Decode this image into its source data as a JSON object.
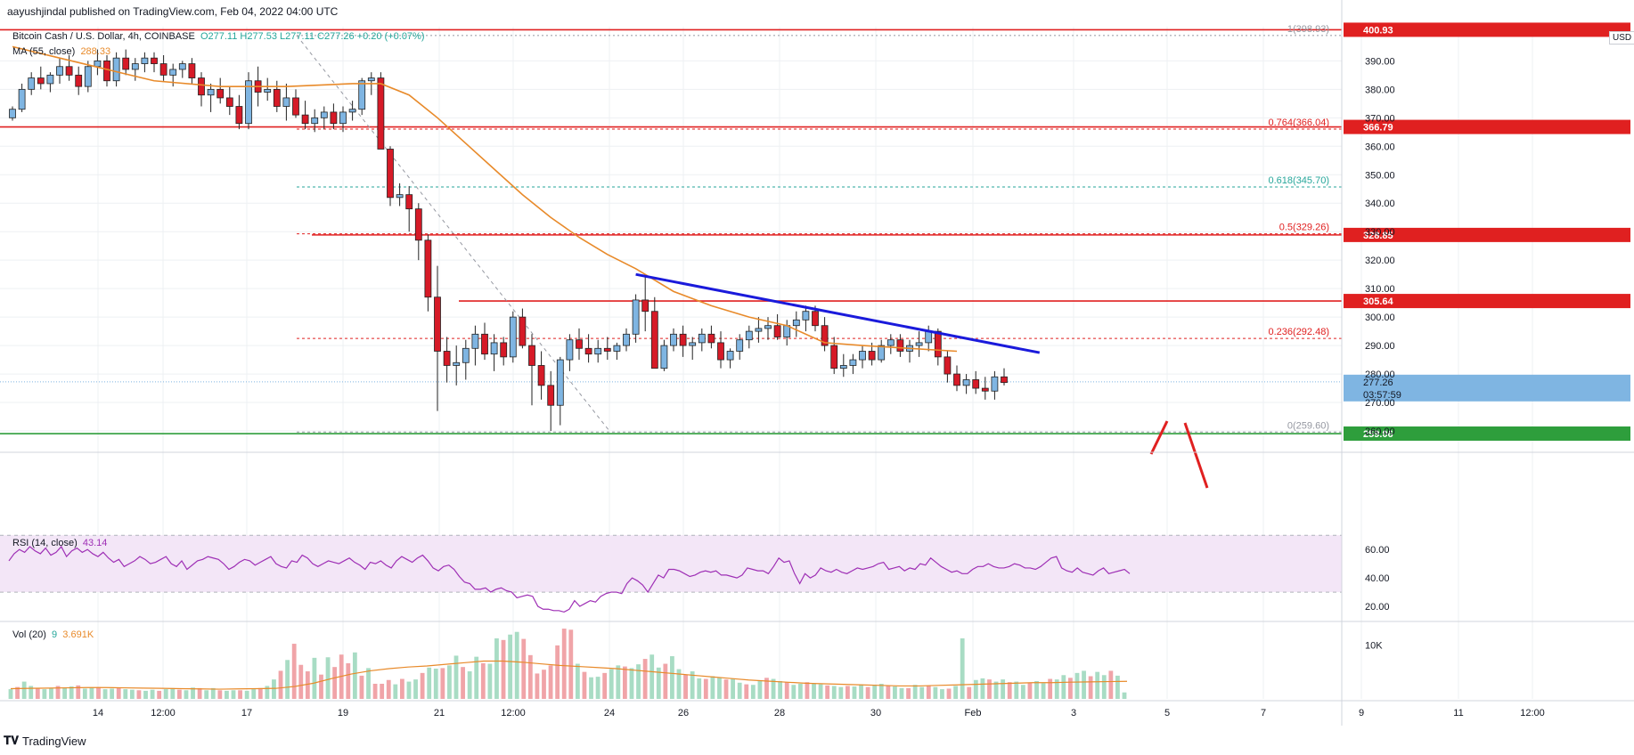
{
  "header": {
    "published": "aayushjindal published on TradingView.com, Feb 04, 2022 04:00 UTC",
    "symbol": "Bitcoin Cash / U.S. Dollar, 4h, COINBASE",
    "ohlc": "O277.11 H277.53 L277.11 C277.26 +0.20 (+0.07%)",
    "ma_label": "MA (55, close)",
    "ma_value": "288.33",
    "currency": "USD"
  },
  "footer": {
    "brand": "TradingView"
  },
  "colors": {
    "up": "#7fb5e2",
    "down": "#d61a27",
    "ma": "#e88a2a",
    "trendline": "#1a1adb",
    "level": "#e02020",
    "support": "#2e9e3c",
    "rsi": "#9e2fb5",
    "vol_up": "#a8dcc4",
    "vol_down": "#f0a4a8"
  },
  "chart_data": [
    {
      "type": "candlestick",
      "pane": "price",
      "ylim": [
        255,
        402
      ],
      "y_ticks": [
        260,
        270,
        280,
        290,
        300,
        310,
        320,
        330,
        340,
        350,
        360,
        370,
        380,
        390
      ],
      "x_ticks": [
        "14",
        "12:00",
        "17",
        "19",
        "21",
        "12:00",
        "24",
        "26",
        "28",
        "30",
        "Feb",
        "3",
        "5",
        "7",
        "9",
        "11",
        "12:00"
      ],
      "series_ohlc": [
        [
          370,
          374,
          369,
          373
        ],
        [
          373,
          382,
          372,
          380
        ],
        [
          380,
          386,
          378,
          384
        ],
        [
          384,
          388,
          380,
          382
        ],
        [
          382,
          386,
          379,
          385
        ],
        [
          385,
          391,
          382,
          388
        ],
        [
          388,
          392,
          383,
          385
        ],
        [
          385,
          388,
          378,
          381
        ],
        [
          381,
          390,
          379,
          388
        ],
        [
          388,
          394,
          385,
          390
        ],
        [
          390,
          392,
          381,
          383
        ],
        [
          383,
          393,
          381,
          391
        ],
        [
          391,
          394,
          385,
          387
        ],
        [
          387,
          391,
          383,
          389
        ],
        [
          389,
          393,
          386,
          391
        ],
        [
          391,
          393,
          386,
          389
        ],
        [
          389,
          392,
          383,
          385
        ],
        [
          385,
          389,
          381,
          387
        ],
        [
          387,
          390,
          384,
          389
        ],
        [
          389,
          391,
          382,
          384
        ],
        [
          384,
          386,
          374,
          378
        ],
        [
          378,
          382,
          372,
          380
        ],
        [
          380,
          384,
          375,
          377
        ],
        [
          377,
          381,
          371,
          374
        ],
        [
          374,
          378,
          366,
          368
        ],
        [
          368,
          386,
          366,
          383
        ],
        [
          383,
          388,
          374,
          379
        ],
        [
          379,
          384,
          376,
          380
        ],
        [
          380,
          383,
          372,
          374
        ],
        [
          374,
          382,
          369,
          377
        ],
        [
          377,
          380,
          370,
          371
        ],
        [
          371,
          376,
          366,
          368
        ],
        [
          368,
          373,
          365,
          370
        ],
        [
          370,
          374,
          366,
          372
        ],
        [
          372,
          375,
          366,
          368
        ],
        [
          368,
          374,
          365,
          372
        ],
        [
          372,
          376,
          369,
          373
        ],
        [
          373,
          384,
          371,
          383
        ],
        [
          383,
          386,
          378,
          384
        ],
        [
          384,
          386,
          359,
          359
        ],
        [
          359,
          360,
          339,
          342
        ],
        [
          342,
          347,
          339,
          343
        ],
        [
          343,
          346,
          330,
          338
        ],
        [
          338,
          340,
          320,
          327
        ],
        [
          327,
          329,
          302,
          307
        ],
        [
          307,
          318,
          267,
          288
        ],
        [
          288,
          293,
          277,
          283
        ],
        [
          283,
          290,
          276,
          284
        ],
        [
          284,
          292,
          278,
          289
        ],
        [
          289,
          297,
          283,
          294
        ],
        [
          294,
          298,
          285,
          287
        ],
        [
          287,
          294,
          281,
          291
        ],
        [
          291,
          293,
          283,
          286
        ],
        [
          286,
          302,
          284,
          300
        ],
        [
          300,
          303,
          289,
          290
        ],
        [
          290,
          294,
          269,
          283
        ],
        [
          283,
          288,
          271,
          276
        ],
        [
          276,
          281,
          260,
          269
        ],
        [
          269,
          286,
          262,
          285
        ],
        [
          285,
          294,
          281,
          292
        ],
        [
          292,
          296,
          285,
          289
        ],
        [
          289,
          294,
          284,
          287
        ],
        [
          287,
          292,
          284,
          289
        ],
        [
          289,
          293,
          285,
          288
        ],
        [
          288,
          291,
          285,
          290
        ],
        [
          290,
          296,
          288,
          294
        ],
        [
          294,
          308,
          291,
          306
        ],
        [
          306,
          315,
          295,
          302
        ],
        [
          302,
          307,
          282,
          282
        ],
        [
          282,
          292,
          281,
          290
        ],
        [
          290,
          296,
          288,
          294
        ],
        [
          294,
          297,
          286,
          290
        ],
        [
          290,
          293,
          285,
          291
        ],
        [
          291,
          296,
          288,
          294
        ],
        [
          294,
          297,
          289,
          291
        ],
        [
          291,
          295,
          282,
          285
        ],
        [
          285,
          289,
          282,
          288
        ],
        [
          288,
          294,
          285,
          292
        ],
        [
          292,
          297,
          289,
          295
        ],
        [
          295,
          300,
          291,
          296
        ],
        [
          296,
          300,
          292,
          297
        ],
        [
          297,
          301,
          292,
          293
        ],
        [
          293,
          299,
          290,
          297
        ],
        [
          297,
          302,
          293,
          299
        ],
        [
          299,
          304,
          295,
          302
        ],
        [
          302,
          304,
          295,
          297
        ],
        [
          297,
          300,
          288,
          290
        ],
        [
          290,
          293,
          280,
          282
        ],
        [
          282,
          287,
          279,
          283
        ],
        [
          283,
          287,
          280,
          285
        ],
        [
          285,
          290,
          282,
          288
        ],
        [
          288,
          291,
          283,
          285
        ],
        [
          285,
          292,
          284,
          290
        ],
        [
          290,
          294,
          287,
          292
        ],
        [
          292,
          294,
          286,
          288
        ],
        [
          288,
          292,
          284,
          290
        ],
        [
          290,
          295,
          286,
          291
        ],
        [
          291,
          297,
          288,
          295
        ],
        [
          295,
          296,
          283,
          286
        ],
        [
          286,
          288,
          277,
          280
        ],
        [
          280,
          283,
          274,
          276
        ],
        [
          276,
          280,
          273,
          278
        ],
        [
          278,
          281,
          273,
          275
        ],
        [
          275,
          279,
          271,
          274
        ],
        [
          274,
          281,
          271,
          279
        ],
        [
          279,
          282,
          276,
          277
        ]
      ],
      "ma_55": [
        [
          0,
          395
        ],
        [
          5,
          391
        ],
        [
          10,
          387
        ],
        [
          15,
          383
        ],
        [
          22,
          381
        ],
        [
          29,
          381
        ],
        [
          36,
          382
        ],
        [
          39,
          382
        ],
        [
          42,
          378
        ],
        [
          45,
          370
        ],
        [
          48,
          361
        ],
        [
          51,
          352
        ],
        [
          54,
          343
        ],
        [
          57,
          335
        ],
        [
          60,
          328
        ],
        [
          63,
          322
        ],
        [
          66,
          317
        ],
        [
          70,
          309
        ],
        [
          74,
          304
        ],
        [
          78,
          300
        ],
        [
          82,
          297
        ],
        [
          86,
          291
        ],
        [
          90,
          290
        ],
        [
          95,
          289
        ],
        [
          100,
          288
        ]
      ],
      "levels": [
        {
          "label": "400.93",
          "value": 400.93
        },
        {
          "label": "366.79",
          "value": 366.79
        },
        {
          "label": "328.85",
          "value": 328.85
        },
        {
          "label": "305.64",
          "value": 305.64
        },
        {
          "label": "259.06",
          "value": 259.06
        }
      ],
      "fibonacci": [
        {
          "label": "1(398.93)",
          "value": 398.93
        },
        {
          "label": "0.764(366.04)",
          "value": 366.04
        },
        {
          "label": "0.618(345.70)",
          "value": 345.7
        },
        {
          "label": "0.5(329.26)",
          "value": 329.26
        },
        {
          "label": "0.236(292.48)",
          "value": 292.48
        },
        {
          "label": "0(259.60)",
          "value": 259.6
        }
      ],
      "trendline": [
        [
          66,
          315
        ],
        [
          108,
          287.5
        ]
      ],
      "last_price": {
        "value": 277.26,
        "label": "277.26",
        "countdown": "03:57:59"
      }
    },
    {
      "type": "line",
      "pane": "rsi",
      "label": "RSI (14, close)",
      "current": "43.14",
      "ylim": [
        10,
        72
      ],
      "y_ticks": [
        "60.00",
        "40.00",
        "20.00"
      ],
      "values": [
        52,
        57,
        60,
        58,
        62,
        59,
        57,
        61,
        56,
        58,
        62,
        55,
        59,
        61,
        58,
        60,
        57,
        55,
        58,
        54,
        51,
        53,
        48,
        50,
        52,
        55,
        53,
        50,
        51,
        53,
        55,
        50,
        48,
        52,
        46,
        49,
        52,
        53,
        55,
        54,
        53,
        50,
        46,
        48,
        51,
        53,
        52,
        49,
        51,
        53,
        55,
        50,
        48,
        47,
        52,
        51,
        56,
        54,
        50,
        48,
        50,
        52,
        51,
        50,
        52,
        54,
        51,
        49,
        46,
        51,
        50,
        52,
        49,
        47,
        52,
        55,
        53,
        51,
        54,
        56,
        52,
        47,
        45,
        48,
        49,
        46,
        41,
        37,
        36,
        32,
        32,
        33,
        30,
        32,
        33,
        31,
        30,
        26,
        27,
        28,
        27,
        20,
        18,
        18,
        17,
        17,
        16,
        18,
        24,
        20,
        22,
        24,
        23,
        27,
        29,
        30,
        30,
        29,
        36,
        40,
        38,
        35,
        30,
        36,
        42,
        40,
        46,
        46,
        45,
        43,
        41,
        42,
        44,
        45,
        44,
        45,
        42,
        42,
        41,
        40,
        42,
        47,
        46,
        45,
        45,
        43,
        48,
        54,
        51,
        52,
        43,
        36,
        43,
        40,
        42,
        47,
        45,
        44,
        46,
        44,
        43,
        45,
        47,
        46,
        47,
        48,
        50,
        51,
        46,
        47,
        48,
        45,
        47,
        46,
        50,
        49,
        54,
        51,
        48,
        46,
        44,
        45,
        43,
        43,
        46,
        48,
        48,
        50,
        48,
        47,
        47,
        48,
        50,
        49,
        47,
        47,
        46,
        48,
        51,
        54,
        55,
        47,
        45,
        44,
        47,
        44,
        43,
        42,
        45,
        47,
        43,
        44,
        45,
        46,
        43
      ]
    },
    {
      "type": "bar",
      "pane": "volume",
      "label": "Vol (20)",
      "count": "9",
      "current": "3.691K",
      "y_ticks": [
        "10K"
      ],
      "ylim": [
        0,
        14000
      ],
      "values": [
        1800,
        2200,
        3200,
        2400,
        1900,
        1800,
        2000,
        2400,
        2100,
        2300,
        2500,
        1900,
        2100,
        2200,
        1800,
        1900,
        2000,
        1800,
        1700,
        1600,
        1500,
        1700,
        1500,
        1800,
        2000,
        1700,
        1600,
        2100,
        2000,
        1600,
        2000,
        1600,
        1500,
        1600,
        1600,
        1500,
        1800,
        2000,
        2400,
        3600,
        5200,
        7200,
        10200,
        6300,
        5100,
        7600,
        4500,
        7700,
        5900,
        8200,
        6600,
        8600,
        4300,
        5700,
        2800,
        2800,
        3500,
        2700,
        3700,
        3200,
        3600,
        4800,
        5800,
        5600,
        5700,
        6200,
        8000,
        5900,
        5100,
        7800,
        6600,
        6500,
        11200,
        10900,
        11900,
        12400,
        11100,
        8100,
        4700,
        5400,
        6200,
        9900,
        13000,
        12800,
        6500,
        5000,
        4000,
        4100,
        4800,
        5500,
        6200,
        6000,
        5700,
        6400,
        7400,
        8200,
        5800,
        6500,
        7900,
        5500,
        4500,
        5100,
        3800,
        3700,
        4200,
        3900,
        3600,
        3700,
        3000,
        2700,
        2600,
        3300,
        3900,
        3700,
        3300,
        3100,
        2600,
        2800,
        3100,
        2800,
        2700,
        2500,
        2400,
        2200,
        2400,
        2300,
        2700,
        2200,
        2600,
        2800,
        2500,
        2300,
        2000,
        2000,
        2600,
        2200,
        2400,
        2200,
        1800,
        1900,
        2400,
        11200,
        2200,
        3500,
        3800,
        3600,
        3200,
        3600,
        3100,
        3200,
        2600,
        3000,
        3300,
        2900,
        3700,
        3600,
        4400,
        3900,
        4800,
        5200,
        4200,
        5000,
        4400,
        5200,
        4300,
        1200
      ],
      "ma_20": [
        1900,
        1950,
        2000,
        2050,
        2100,
        2100,
        2050,
        2000,
        1950,
        1900,
        1850,
        1800,
        1850,
        1900,
        1950,
        2300,
        2900,
        3800,
        4600,
        5200,
        5600,
        5900,
        6100,
        6400,
        6700,
        7000,
        7000,
        6800,
        6500,
        6200,
        6000,
        5800,
        5600,
        5300,
        5000,
        4700,
        4400,
        4100,
        3800,
        3500,
        3300,
        3100,
        2900,
        2800,
        2700,
        2600,
        2500,
        2400,
        2400,
        2500,
        2600,
        2700,
        2800,
        2900,
        3000,
        3000,
        3100,
        3150,
        3200,
        3250
      ]
    }
  ]
}
